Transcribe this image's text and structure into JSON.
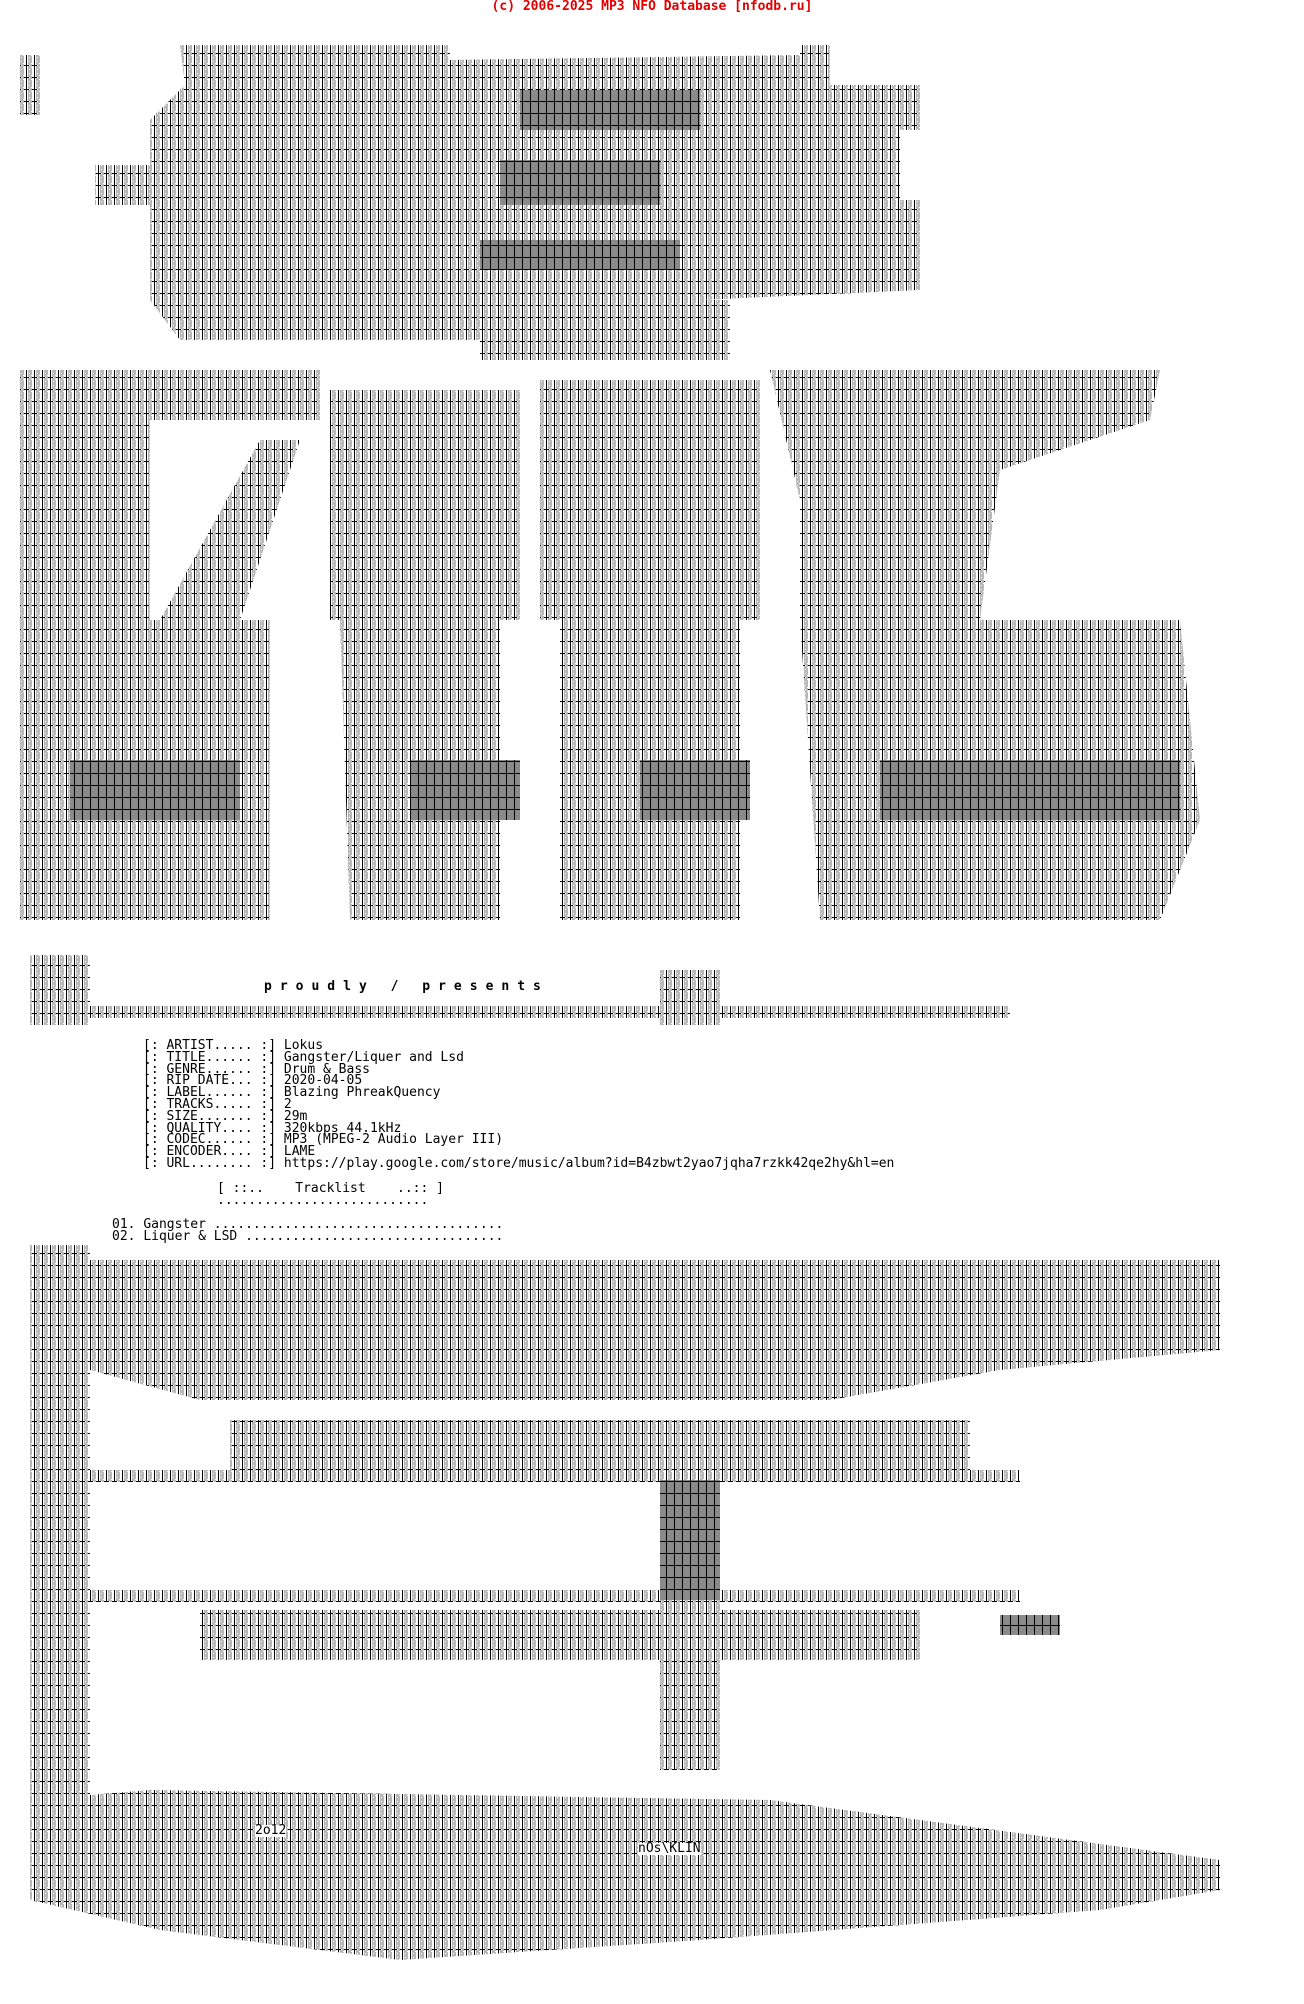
{
  "header": {
    "copyright": "(c) 2006-2025 MP3 NFO Database [nfodb.ru]",
    "color": "#e00000"
  },
  "intro": {
    "proudly_presents": "proudly / presents"
  },
  "info": [
    {
      "label": "[: ARTIST..... :]",
      "value": "Lokus"
    },
    {
      "label": "[: TITLE...... :]",
      "value": "Gangster/Liquer and Lsd"
    },
    {
      "label": "[: GENRE...... :]",
      "value": "Drum & Bass"
    },
    {
      "label": "[: RIP DATE... :]",
      "value": "2020-04-05"
    },
    {
      "label": "[: LABEL...... :]",
      "value": "Blazing PhreakQuency"
    },
    {
      "label": "[: TRACKS..... :]",
      "value": "2"
    },
    {
      "label": "[: SIZE....... :]",
      "value": "29m"
    },
    {
      "label": "[: QUALITY.... :]",
      "value": "320kbps 44.1kHz"
    },
    {
      "label": "[: CODEC...... :]",
      "value": "MP3 (MPEG-2 Audio Layer III)"
    },
    {
      "label": "[: ENCODER.... :]",
      "value": "LAME"
    },
    {
      "label": "[: URL........ :]",
      "value": "https://play.google.com/store/music/album?id=B4zbwt2yao7jqha7rzkk42qe2hy&hl=en"
    }
  ],
  "tracklist": {
    "heading": "[ ::..    Tracklist    ..:: ]",
    "underline": "...........................",
    "tracks": [
      {
        "num": "01.",
        "title": "Gangster",
        "dots": "....................................."
      },
      {
        "num": "02.",
        "title": "Liquer & LSD",
        "dots": "................................."
      }
    ]
  },
  "art": {
    "year_tag": "2o12",
    "artist_tag": "nOs\\KLIN"
  }
}
